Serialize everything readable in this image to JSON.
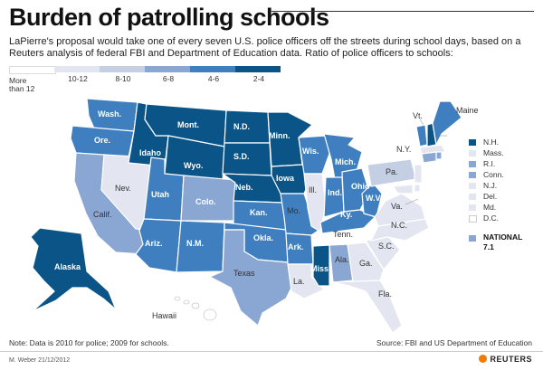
{
  "header": {
    "title": "Burden of patrolling schools",
    "subtitle": "LaPierre's proposal would take one of every seven U.S. police officers off the streets  during school days, based on a Reuters analysis of federal FBI and Department of Education data. Ratio of police officers to schools:"
  },
  "legend": {
    "items": [
      {
        "label": "More than 12",
        "color": "#ffffff"
      },
      {
        "label": "10-12",
        "color": "#e3e6f0"
      },
      {
        "label": "8-10",
        "color": "#c4cfe4"
      },
      {
        "label": "6-8",
        "color": "#8aa6d3"
      },
      {
        "label": "4-6",
        "color": "#3f7fbf"
      },
      {
        "label": "2-4",
        "color": "#0b5488"
      }
    ]
  },
  "colors": {
    "c0": "#ffffff",
    "c1": "#e3e6f0",
    "c2": "#c4cfe4",
    "c3": "#8aa6d3",
    "c4": "#3f7fbf",
    "c5": "#0b5488",
    "border": "#ffffff",
    "text": "#222222"
  },
  "states": {
    "Wash": "Wash.",
    "Ore": "Ore.",
    "Calif": "Calif.",
    "Nev": "Nev.",
    "Idaho": "Idaho",
    "Mont": "Mont.",
    "Wyo": "Wyo.",
    "Utah": "Utah",
    "Colo": "Colo.",
    "Ariz": "Ariz.",
    "NM": "N.M.",
    "ND": "N.D.",
    "SD": "S.D.",
    "Neb": "Neb.",
    "Kan": "Kan.",
    "Okla": "Okla.",
    "Texas": "Texas",
    "Minn": "Minn.",
    "Iowa": "Iowa",
    "Mo": "Mo.",
    "Ark": "Ark.",
    "La": "La.",
    "Wis": "Wis.",
    "Ill": "Ill.",
    "Mich": "Mich.",
    "Ind": "Ind.",
    "Ohio": "Ohio",
    "Ky": "Ky.",
    "Tenn": "Tenn.",
    "Miss": "Miss.",
    "Ala": "Ala.",
    "Ga": "Ga.",
    "Fla": "Fla.",
    "SC": "S.C.",
    "NC": "N.C.",
    "Va": "Va.",
    "WV": "W.V.",
    "Pa": "Pa.",
    "NY": "N.Y.",
    "Vt": "Vt.",
    "Maine": "Maine",
    "Alaska": "Alaska",
    "Hawaii": "Hawaii"
  },
  "right_legend": [
    {
      "label": "N.H.",
      "color": "#0b5488"
    },
    {
      "label": "Mass.",
      "color": "#e3e6f0"
    },
    {
      "label": "R.I.",
      "color": "#8aa6d3"
    },
    {
      "label": "Conn.",
      "color": "#8aa6d3"
    },
    {
      "label": "N.J.",
      "color": "#e3e6f0"
    },
    {
      "label": "Del.",
      "color": "#e3e6f0"
    },
    {
      "label": "Md.",
      "color": "#e3e6f0"
    },
    {
      "label": "D.C.",
      "color": "#ffffff"
    }
  ],
  "national": {
    "label": "NATIONAL",
    "value": "7.1",
    "color": "#8aa6d3"
  },
  "footer": {
    "note": "Note: Data is 2010 for police; 2009 for schools.",
    "source": "Source: FBI and US Department of Education",
    "credit": "M. Weber 21/12/2012",
    "brand": "REUTERS"
  }
}
